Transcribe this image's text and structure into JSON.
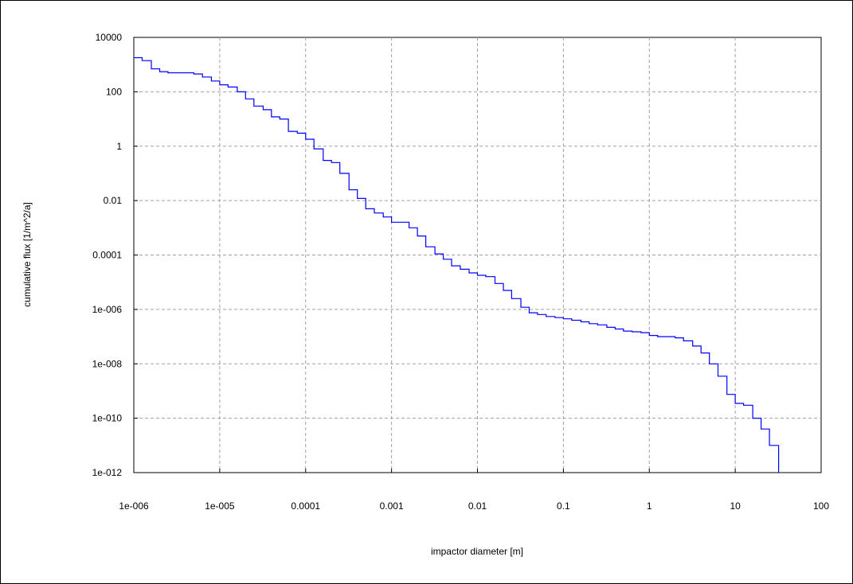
{
  "chart_data": {
    "type": "line",
    "title": "",
    "xlabel": "impactor diameter  [m]",
    "ylabel": "cumulative   flux [1/m^2/a]",
    "xscale": "log",
    "yscale": "log",
    "xlim": [
      1e-06,
      100
    ],
    "ylim": [
      1e-12,
      10000
    ],
    "grid": true,
    "line_color": "#0000ff",
    "x_ticks": [
      1e-06,
      1e-05,
      0.0001,
      0.001,
      0.01,
      0.1,
      1,
      10,
      100
    ],
    "x_tick_labels": [
      "1e-006",
      "1e-005",
      "0.0001",
      "0.001",
      "0.01",
      "0.1",
      "1",
      "10",
      "100"
    ],
    "y_ticks": [
      1e-12,
      1e-10,
      1e-08,
      1e-06,
      0.0001,
      0.01,
      1,
      100,
      10000
    ],
    "y_tick_labels": [
      "1e-012",
      "1e-010",
      "1e-008",
      "1e-006",
      "0.0001",
      "0.01",
      "1",
      "100",
      "10000"
    ],
    "series": [
      {
        "step": "post",
        "x": [
          1e-06,
          1.25e-06,
          1.6e-06,
          2e-06,
          2.5e-06,
          5e-06,
          6.3e-06,
          8e-06,
          1e-05,
          1.25e-05,
          1.6e-05,
          2e-05,
          2.5e-05,
          3.2e-05,
          4e-05,
          5e-05,
          6.3e-05,
          8e-05,
          0.0001,
          0.000125,
          0.00016,
          0.0002,
          0.00025,
          0.00032,
          0.0004,
          0.0005,
          0.00063,
          0.0008,
          0.001,
          0.00125,
          0.0016,
          0.002,
          0.0025,
          0.0032,
          0.004,
          0.005,
          0.0063,
          0.008,
          0.01,
          0.0125,
          0.016,
          0.02,
          0.025,
          0.032,
          0.04,
          0.05,
          0.063,
          0.08,
          0.1,
          0.125,
          0.16,
          0.2,
          0.25,
          0.32,
          0.4,
          0.5,
          0.63,
          0.8,
          1,
          1.25,
          1.6,
          2,
          2.5,
          3.2,
          4,
          5,
          6.3,
          8,
          10,
          12.5,
          16,
          20,
          25,
          32
        ],
        "y": [
          1800,
          1400,
          700,
          550,
          500,
          450,
          350,
          250,
          180,
          150,
          100,
          55,
          30,
          22,
          12,
          10,
          3.5,
          3,
          1.8,
          0.8,
          0.3,
          0.25,
          0.1,
          0.025,
          0.012,
          0.005,
          0.0035,
          0.0025,
          0.0016,
          0.0016,
          0.001,
          0.0005,
          0.0002,
          0.00011,
          7e-05,
          4e-05,
          3e-05,
          2.2e-05,
          1.8e-05,
          1.6e-05,
          9e-06,
          5e-06,
          2.5e-06,
          1.2e-06,
          7.5e-07,
          6.5e-07,
          5.5e-07,
          5e-07,
          4.5e-07,
          4e-07,
          3.5e-07,
          3e-07,
          2.7e-07,
          2.2e-07,
          1.9e-07,
          1.6e-07,
          1.5e-07,
          1.4e-07,
          1.1e-07,
          1e-07,
          1e-07,
          9e-08,
          7e-08,
          4.5e-08,
          2.5e-08,
          1e-08,
          3.5e-09,
          7.5e-10,
          3.5e-10,
          3e-10,
          1e-10,
          4e-11,
          1e-11,
          1e-12
        ]
      }
    ]
  }
}
